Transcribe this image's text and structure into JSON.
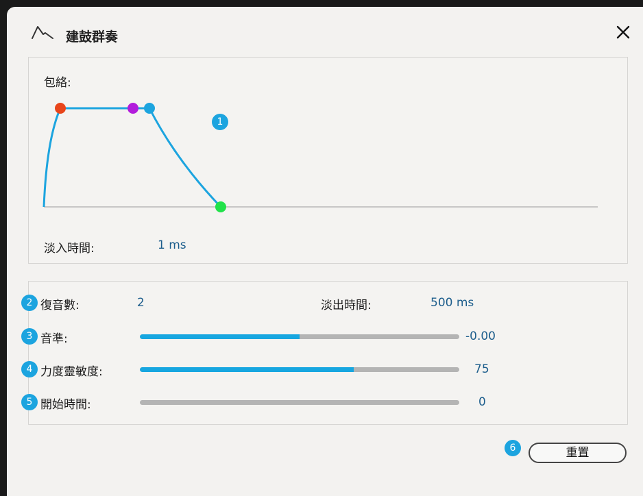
{
  "header": {
    "title": "建鼓群奏",
    "app_icon": "envelope-wave-icon",
    "close_icon": "close-icon"
  },
  "envelope": {
    "label": "包絡:",
    "fade_in_label": "淡入時間:",
    "fade_in_value": "1 ms",
    "points": {
      "attack_color": "#e8451a",
      "hold_color": "#b21cdc",
      "decay_color": "#1ca4df",
      "release_color": "#21e24a"
    },
    "curve_color": "#1ca4df"
  },
  "params": {
    "voices_label": "復音數:",
    "voices_value": "2",
    "fade_out_label": "淡出時間:",
    "fade_out_value": "500 ms",
    "pitch_label": "音準:",
    "pitch_value": "-0.00",
    "pitch_fraction": 0.5,
    "velocity_label": "力度靈敏度:",
    "velocity_value": "75",
    "velocity_fraction": 0.67,
    "start_label": "開始時間:",
    "start_value": "0",
    "start_fraction": 0
  },
  "badges": [
    "1",
    "2",
    "3",
    "4",
    "5",
    "6"
  ],
  "reset_label": "重置",
  "colors": {
    "accent": "#17a6e0",
    "value_text": "#1c5d8c",
    "track": "#b4b4b4"
  }
}
